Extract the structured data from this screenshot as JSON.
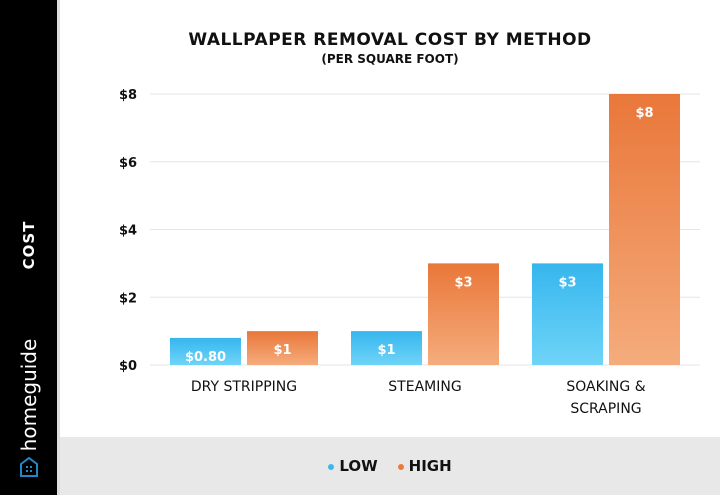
{
  "sidebar": {
    "axis_label": "COST",
    "brand": "homeguide",
    "brand_icon": "house-icon"
  },
  "chart_data": {
    "type": "bar",
    "title": "WALLPAPER REMOVAL COST BY METHOD",
    "subtitle": "(PER SQUARE FOOT)",
    "ylabel": "COST",
    "categories": [
      [
        "DRY STRIPPING"
      ],
      [
        "STEAMING"
      ],
      [
        "SOAKING &",
        "SCRAPING"
      ]
    ],
    "series": [
      {
        "name": "LOW",
        "color": "#3ab8ee",
        "values": [
          0.8,
          1,
          3
        ],
        "labels": [
          "$0.80",
          "$1",
          "$3"
        ]
      },
      {
        "name": "HIGH",
        "color": "#ea7b3c",
        "values": [
          1,
          3,
          8
        ],
        "labels": [
          "$1",
          "$3",
          "$8"
        ]
      }
    ],
    "ylim": [
      0,
      8
    ],
    "yticks": [
      0,
      2,
      4,
      6,
      8
    ],
    "ytick_labels": [
      "$0",
      "$2",
      "$4",
      "$6",
      "$8"
    ],
    "grid": true,
    "legend_placement": "bottom"
  }
}
